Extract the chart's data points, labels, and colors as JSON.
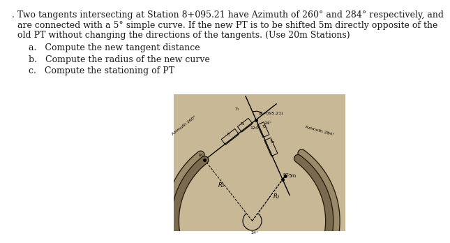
{
  "line1": ". Two tangents intersecting at Station 8+095.21 have Azimuth of 260° and 284° respectively, and",
  "line2": "  are connected with a 5° simple curve. If the new PT is to be shifted 5m directly opposite of the",
  "line3": "  old PT without changing the directions of the tangents. (Use 20m Stations)",
  "item_a": "a.   Compute the new tangent distance",
  "item_b": "b.   Compute the radius of the new curve",
  "item_c": "c.   Compute the stationing of PT",
  "diagram_bg": "#c8b896",
  "text_color": "#1a1a1a",
  "font_size": 9.0,
  "pi_label": "(8+095.21)",
  "azimuth_left": "Azimuth 260°",
  "azimuth_right": "Azimuth 284°",
  "label_5m": "5m",
  "label_R1": "R₁",
  "label_R2": "R₂",
  "label_24a": "24°",
  "label_24b": "24°",
  "label_124": "124°",
  "label_PC": "P.C.",
  "label_PT": "P.T.",
  "label_T1a": "T₁",
  "label_T2a": "T₂",
  "label_T2b": "T₂",
  "label_T3": "T₃",
  "label_T1b": "T₁"
}
